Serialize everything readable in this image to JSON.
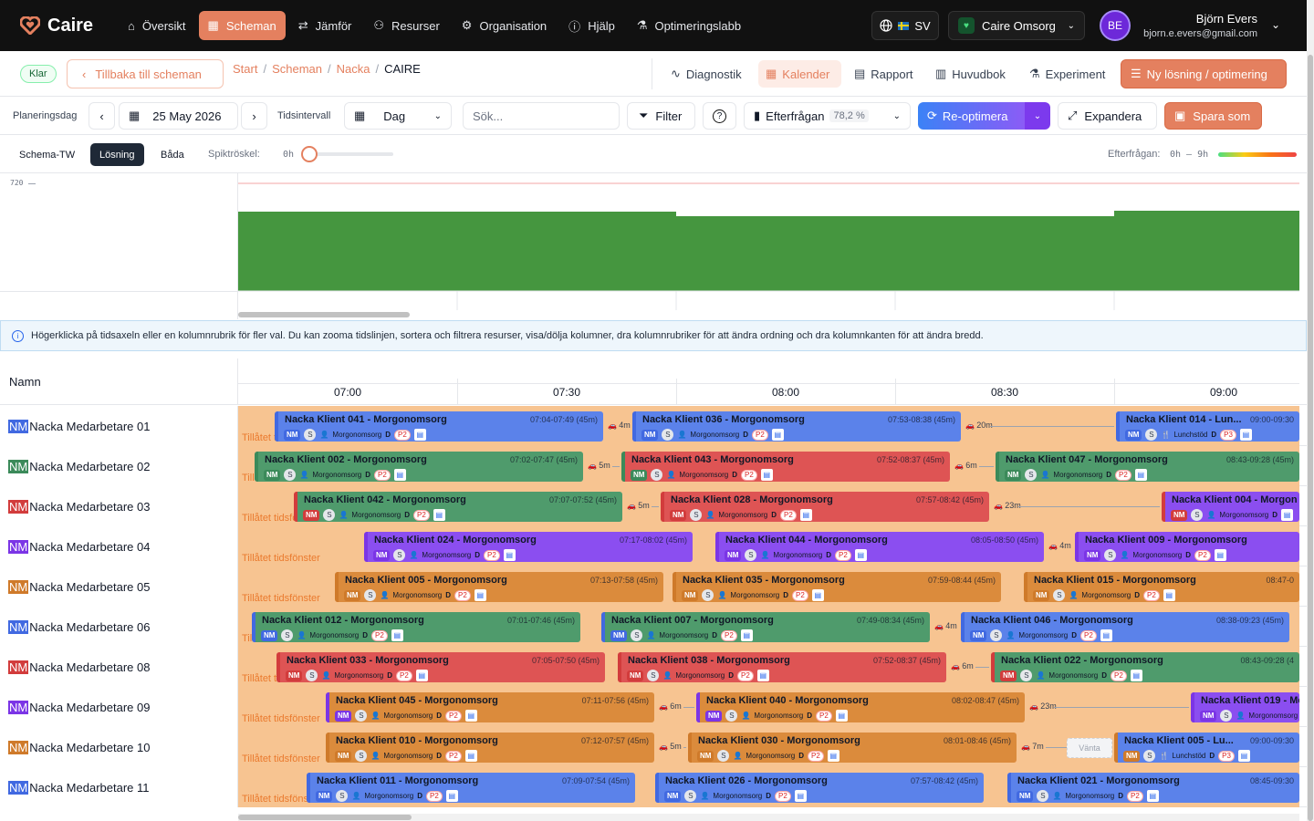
{
  "nav": {
    "brand": "Caire",
    "items": [
      {
        "label": "Översikt",
        "icon": "home-icon",
        "active": false
      },
      {
        "label": "Scheman",
        "icon": "calendar-icon",
        "active": true
      },
      {
        "label": "Jämför",
        "icon": "compare-icon",
        "active": false
      },
      {
        "label": "Resurser",
        "icon": "users-icon",
        "active": false
      },
      {
        "label": "Organisation",
        "icon": "gear-icon",
        "active": false
      },
      {
        "label": "Hjälp",
        "icon": "help-icon",
        "active": false
      },
      {
        "label": "Optimeringslabb",
        "icon": "flask-icon",
        "active": false
      }
    ],
    "language": "SV",
    "org": "Caire Omsorg",
    "user": {
      "initials": "BE",
      "name": "Björn Evers",
      "email": "bjorn.e.evers@gmail.com"
    }
  },
  "subbar": {
    "status": "Klar",
    "back": "Tillbaka till scheman",
    "breadcrumb": [
      "Start",
      "Scheman",
      "Nacka",
      "CAIRE"
    ],
    "diagnostics": "Diagnostik",
    "calendar": "Kalender",
    "report": "Rapport",
    "ledger": "Huvudbok",
    "experiment": "Experiment",
    "new_solution": "Ny lösning / optimering"
  },
  "toolbar": {
    "planning_day_label": "Planeringsdag",
    "date": "25 May 2026",
    "interval_label": "Tidsintervall",
    "interval": "Dag",
    "search_placeholder": "Sök...",
    "filter": "Filter",
    "demand": "Efterfrågan",
    "demand_pct": "78,2 %",
    "reoptimize": "Re-optimera",
    "expand": "Expandera",
    "save_as": "Spara som"
  },
  "viewbar": {
    "modes": [
      "Schema-TW",
      "Lösning",
      "Båda"
    ],
    "active_mode": "Lösning",
    "spike_label": "Spiktröskel:",
    "spike_value": "0h",
    "demand_label": "Efterfrågan:",
    "demand_range": "0h – 9h"
  },
  "demand_chart": {
    "y_tick": "720"
  },
  "info": "Högerklicka på tidsaxeln eller en kolumnrubrik för fler val. Du kan zooma tidslinjen, sortera och filtrera resurser, visa/dölja kolumner, dra kolumnrubriker för att ändra ordning och dra kolumnkanten för att ändra bredd.",
  "gantt": {
    "name_header": "Namn",
    "ticks": [
      "07:00",
      "07:30",
      "08:00",
      "08:30",
      "09:00"
    ],
    "time_window_label": "Tillåtet tidsfönster",
    "colors": {
      "blue": "#4169e1",
      "green": "#3b8a5a",
      "red": "#d23c3c",
      "purple": "#7b35e6",
      "orange": "#cf7a2a",
      "track": "#f7c491"
    },
    "rows": [
      {
        "tag": "NM",
        "name": "Nacka Medarbetare 01",
        "color": "blue",
        "blocks": [
          {
            "title": "Nacka Klient 041 - Morgonomsorg",
            "time": "07:04-07:49 (45m)",
            "kind": "Morgonomsorg",
            "prio": "P2",
            "gap": "4m",
            "s": 40,
            "e": 400
          },
          {
            "title": "Nacka Klient 036 - Morgonomsorg",
            "time": "07:53-08:38 (45m)",
            "kind": "Morgonomsorg",
            "prio": "P2",
            "gap": "20m",
            "s": 432,
            "e": 792
          },
          {
            "title": "Nacka Klient 014 - Lun...",
            "time": "09:00-09:30",
            "kind": "Lunchstöd",
            "prio": "P3",
            "gap": "",
            "s": 962,
            "e": 1163
          }
        ]
      },
      {
        "tag": "NM",
        "name": "Nacka Medarbetare 02",
        "color": "green",
        "blocks": [
          {
            "title": "Nacka Klient 002 - Morgonomsorg",
            "time": "07:02-07:47 (45m)",
            "kind": "Morgonomsorg",
            "prio": "P2",
            "gap": "5m",
            "s": 18,
            "e": 378
          },
          {
            "title": "Nacka Klient 043 - Morgonomsorg",
            "time": "07:52-08:37 (45m)",
            "kind": "Morgonomsorg",
            "prio": "P2",
            "gap": "6m",
            "s": 420,
            "e": 780,
            "tint": "red"
          },
          {
            "title": "Nacka Klient 047 - Morgonomsorg",
            "time": "08:43-09:28 (45m)",
            "kind": "Morgonomsorg",
            "prio": "P2",
            "gap": "",
            "s": 830,
            "e": 1163
          }
        ]
      },
      {
        "tag": "NM",
        "name": "Nacka Medarbetare 03",
        "color": "red",
        "blocks": [
          {
            "title": "Nacka Klient 042 - Morgonomsorg",
            "time": "07:07-07:52 (45m)",
            "kind": "Morgonomsorg",
            "prio": "P2",
            "gap": "5m",
            "s": 61,
            "e": 421,
            "tint": "green"
          },
          {
            "title": "Nacka Klient 028 - Morgonomsorg",
            "time": "07:57-08:42 (45m)",
            "kind": "Morgonomsorg",
            "prio": "P2",
            "gap": "23m",
            "s": 463,
            "e": 823
          },
          {
            "title": "Nacka Klient 004 - Morgon",
            "time": "",
            "kind": "Morgonomsorg",
            "prio": "",
            "gap": "",
            "s": 1012,
            "e": 1163,
            "tint": "purple"
          }
        ]
      },
      {
        "tag": "NM",
        "name": "Nacka Medarbetare 04",
        "color": "purple",
        "blocks": [
          {
            "title": "Nacka Klient 024 - Morgonomsorg",
            "time": "07:17-08:02 (45m)",
            "kind": "Morgonomsorg",
            "prio": "P2",
            "gap": "",
            "s": 138,
            "e": 498
          },
          {
            "title": "Nacka Klient 044 - Morgonomsorg",
            "time": "08:05-08:50 (45m)",
            "kind": "Morgonomsorg",
            "prio": "P2",
            "gap": "4m",
            "s": 523,
            "e": 883
          },
          {
            "title": "Nacka Klient 009 - Morgonomsorg",
            "time": "",
            "kind": "Morgonomsorg",
            "prio": "P2",
            "gap": "",
            "s": 917,
            "e": 1163
          }
        ]
      },
      {
        "tag": "NM",
        "name": "Nacka Medarbetare 05",
        "color": "orange",
        "blocks": [
          {
            "title": "Nacka Klient 005 - Morgonomsorg",
            "time": "07:13-07:58 (45m)",
            "kind": "Morgonomsorg",
            "prio": "P2",
            "gap": "",
            "s": 106,
            "e": 466
          },
          {
            "title": "Nacka Klient 035 - Morgonomsorg",
            "time": "07:59-08:44 (45m)",
            "kind": "Morgonomsorg",
            "prio": "P2",
            "gap": "",
            "s": 476,
            "e": 836
          },
          {
            "title": "Nacka Klient 015 - Morgonomsorg",
            "time": "08:47-0",
            "kind": "Morgonomsorg",
            "prio": "P2",
            "gap": "",
            "s": 861,
            "e": 1163
          }
        ]
      },
      {
        "tag": "NM",
        "name": "Nacka Medarbetare 06",
        "color": "blue",
        "blocks": [
          {
            "title": "Nacka Klient 012 - Morgonomsorg",
            "time": "07:01-07:46 (45m)",
            "kind": "Morgonomsorg",
            "prio": "P2",
            "gap": "",
            "s": 15,
            "e": 375,
            "tint": "green"
          },
          {
            "title": "Nacka Klient 007 - Morgonomsorg",
            "time": "07:49-08:34 (45m)",
            "kind": "Morgonomsorg",
            "prio": "P2",
            "gap": "4m",
            "s": 398,
            "e": 758,
            "tint": "green"
          },
          {
            "title": "Nacka Klient 046 - Morgonomsorg",
            "time": "08:38-09:23 (45m)",
            "kind": "Morgonomsorg",
            "prio": "P2",
            "gap": "",
            "s": 792,
            "e": 1152
          }
        ]
      },
      {
        "tag": "NM",
        "name": "Nacka Medarbetare 08",
        "color": "red",
        "blocks": [
          {
            "title": "Nacka Klient 033 - Morgonomsorg",
            "time": "07:05-07:50 (45m)",
            "kind": "Morgonomsorg",
            "prio": "P2",
            "gap": "",
            "s": 42,
            "e": 402
          },
          {
            "title": "Nacka Klient 038 - Morgonomsorg",
            "time": "07:52-08:37 (45m)",
            "kind": "Morgonomsorg",
            "prio": "P2",
            "gap": "6m",
            "s": 416,
            "e": 776
          },
          {
            "title": "Nacka Klient 022 - Morgonomsorg",
            "time": "08:43-09:28 (4",
            "kind": "Morgonomsorg",
            "prio": "P2",
            "gap": "",
            "s": 825,
            "e": 1163,
            "tint": "green"
          }
        ]
      },
      {
        "tag": "NM",
        "name": "Nacka Medarbetare 09",
        "color": "purple",
        "blocks": [
          {
            "title": "Nacka Klient 045 - Morgonomsorg",
            "time": "07:11-07:56 (45m)",
            "kind": "Morgonomsorg",
            "prio": "P2",
            "gap": "6m",
            "s": 96,
            "e": 456,
            "tint": "orange"
          },
          {
            "title": "Nacka Klient 040 - Morgonomsorg",
            "time": "08:02-08:47 (45m)",
            "kind": "Morgonomsorg",
            "prio": "P2",
            "gap": "23m",
            "s": 502,
            "e": 862,
            "tint": "orange"
          },
          {
            "title": "Nacka Klient 019 - Mo",
            "time": "",
            "kind": "Morgonomsorg",
            "prio": "",
            "gap": "",
            "s": 1044,
            "e": 1163
          }
        ]
      },
      {
        "tag": "NM",
        "name": "Nacka Medarbetare 10",
        "color": "orange",
        "blocks": [
          {
            "title": "Nacka Klient 010 - Morgonomsorg",
            "time": "07:12-07:57 (45m)",
            "kind": "Morgonomsorg",
            "prio": "P2",
            "gap": "5m",
            "s": 96,
            "e": 456
          },
          {
            "title": "Nacka Klient 030 - Morgonomsorg",
            "time": "08:01-08:46 (45m)",
            "kind": "Morgonomsorg",
            "prio": "P2",
            "gap": "7m",
            "s": 493,
            "e": 853
          },
          {
            "title": "Nacka Klient 005 - Lu...",
            "time": "09:00-09:30",
            "kind": "Lunchstöd",
            "prio": "P3",
            "gap": "",
            "s": 960,
            "e": 1163,
            "tint": "blue"
          }
        ],
        "wait": "Vänta"
      },
      {
        "tag": "NM",
        "name": "Nacka Medarbetare 11",
        "color": "blue",
        "blocks": [
          {
            "title": "Nacka Klient 011 - Morgonomsorg",
            "time": "07:09-07:54 (45m)",
            "kind": "Morgonomsorg",
            "prio": "P2",
            "gap": "",
            "s": 75,
            "e": 435
          },
          {
            "title": "Nacka Klient 026 - Morgonomsorg",
            "time": "07:57-08:42 (45m)",
            "kind": "Morgonomsorg",
            "prio": "P2",
            "gap": "",
            "s": 457,
            "e": 817
          },
          {
            "title": "Nacka Klient 021 - Morgonomsorg",
            "time": "08:45-09:30",
            "kind": "Morgonomsorg",
            "prio": "P2",
            "gap": "",
            "s": 843,
            "e": 1163
          }
        ]
      }
    ],
    "chip_nm": "NM",
    "chip_s": "S",
    "chip_d": "D"
  }
}
